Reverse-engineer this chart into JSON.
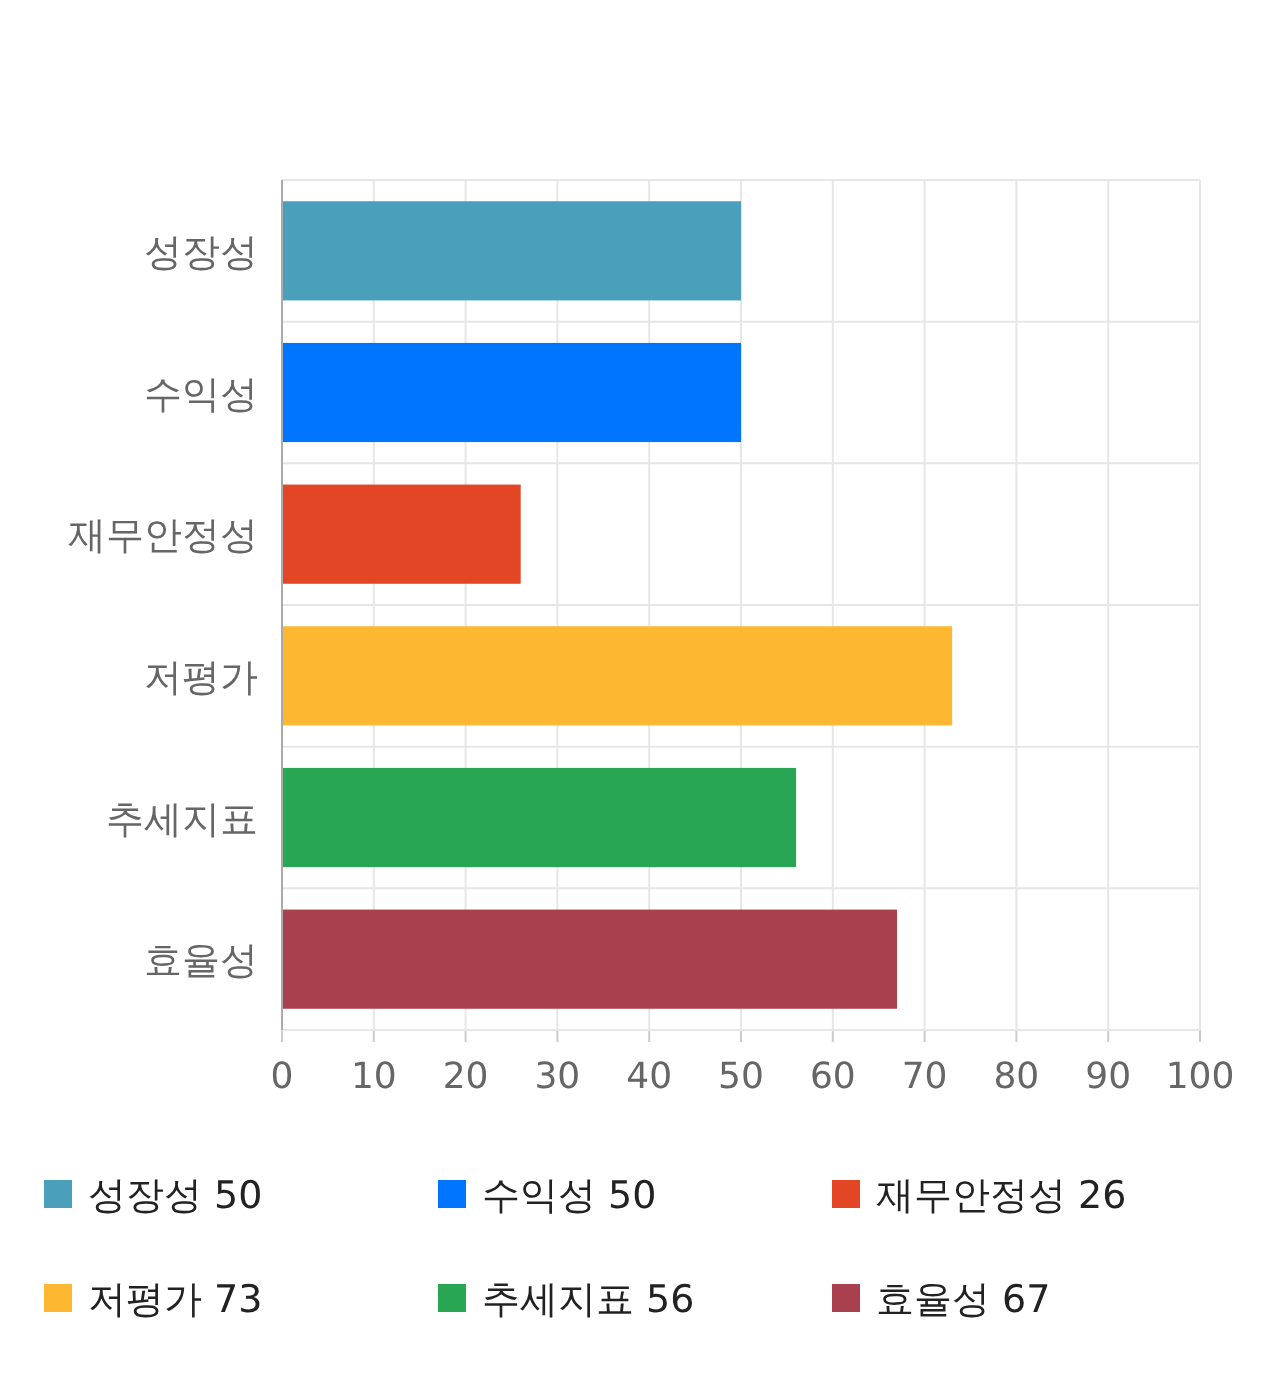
{
  "chart_data": {
    "type": "bar",
    "orientation": "horizontal",
    "categories": [
      "성장성",
      "수익성",
      "재무안정성",
      "저평가",
      "추세지표",
      "효율성"
    ],
    "series": [
      {
        "name": "성장성 50",
        "color": "#4aa0bb",
        "values": [
          50,
          null,
          null,
          null,
          null,
          null
        ]
      },
      {
        "name": "수익성 50",
        "color": "#0075ff",
        "values": [
          null,
          50,
          null,
          null,
          null,
          null
        ]
      },
      {
        "name": "재무안정성 26",
        "color": "#e24625",
        "values": [
          null,
          null,
          26,
          null,
          null,
          null
        ]
      },
      {
        "name": "저평가 73",
        "color": "#feb731",
        "values": [
          null,
          null,
          null,
          73,
          null,
          null
        ]
      },
      {
        "name": "추세지표 56",
        "color": "#28a653",
        "values": [
          null,
          null,
          null,
          null,
          56,
          null
        ]
      },
      {
        "name": "효율성 67",
        "color": "#a8404e",
        "values": [
          null,
          null,
          null,
          null,
          null,
          67
        ]
      }
    ],
    "xlim": [
      0,
      100
    ],
    "xticks": [
      0,
      10,
      20,
      30,
      40,
      50,
      60,
      70,
      80,
      90,
      100
    ],
    "grid": true,
    "legend": "bottom"
  }
}
